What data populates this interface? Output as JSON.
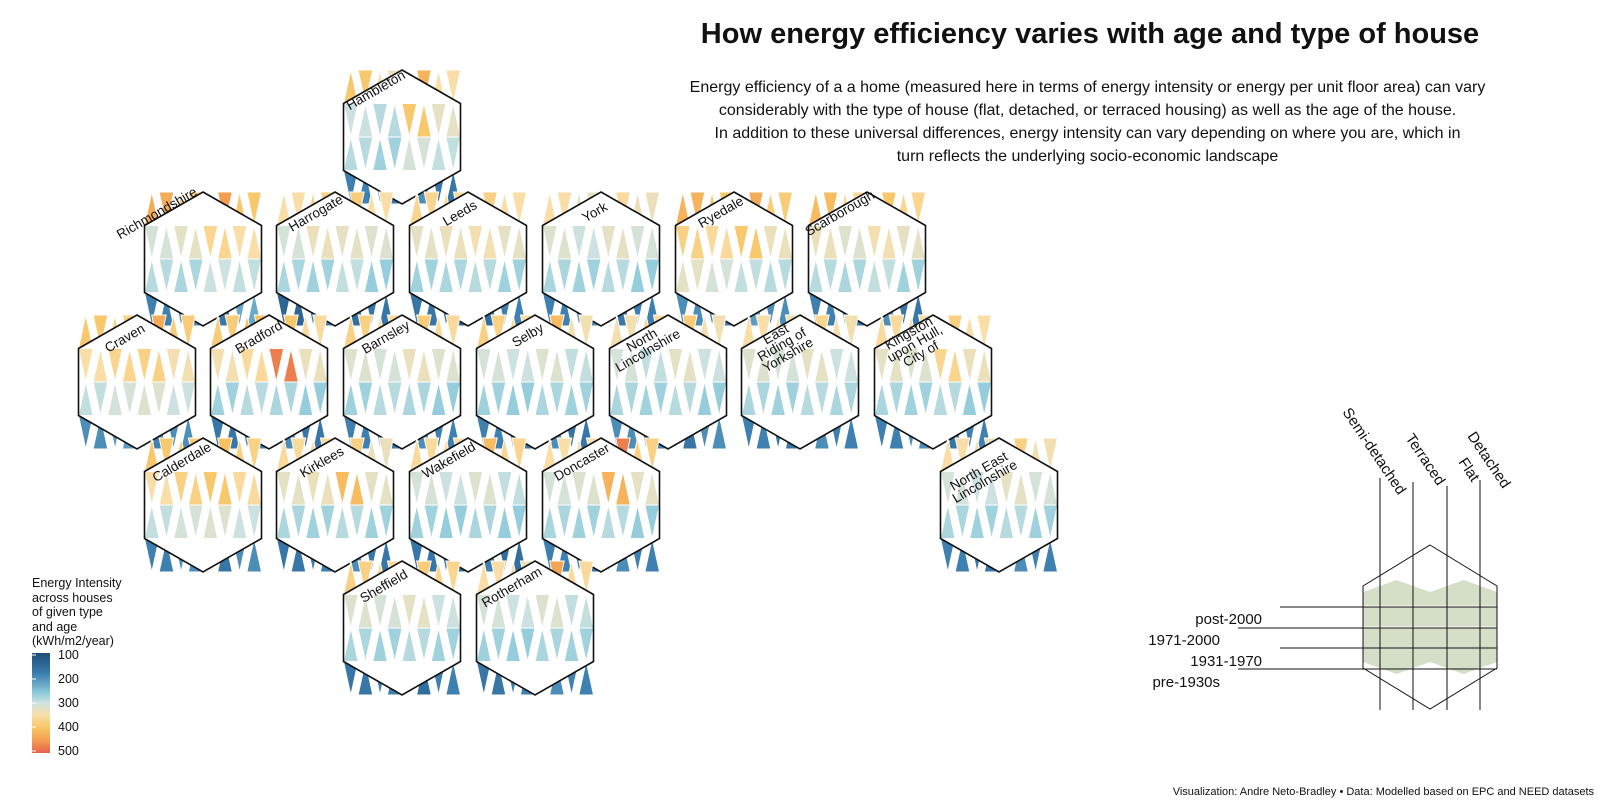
{
  "header": {
    "title": "How energy efficiency varies with age and type of house",
    "subtitle_lines": [
      "Energy efficiency of a a home (measured here in terms of energy intensity or energy per unit floor area) can vary",
      "considerably with the type of house (flat, detached, or terraced housing) as well as the age of the house.",
      "In addition to these universal differences, energy intensity can vary depending on where you are, which in",
      "turn reflects the underlying socio-economic landscape"
    ]
  },
  "caption": "Visualization: Andre Neto-Bradley  •  Data: Modelled based on EPC and NEED datasets",
  "legend": {
    "title_lines": [
      "Energy Intensity",
      "across houses",
      "of given type",
      "and age",
      "(kWh/m2/year)"
    ],
    "ticks": [
      "100",
      "200",
      "300",
      "400",
      "500"
    ]
  },
  "key": {
    "house_types": [
      "Semi-detached",
      "Terraced",
      "Flat",
      "Detached"
    ],
    "age_bands": [
      "post-2000",
      "1971-2000",
      "1931-1970",
      "pre-1930s"
    ]
  },
  "colors": {
    "scale": [
      "#1f4e79",
      "#3a7cad",
      "#8ecbdc",
      "#cfe3e0",
      "#f9dfaa",
      "#f8c565",
      "#f39b4f",
      "#e6614e"
    ],
    "key_fill": "#d5dfc8",
    "outline": "#111111"
  },
  "chart_data": {
    "type": "heatmap",
    "title": "How energy efficiency varies with age and type of house",
    "value_unit": "kWh/m2/year",
    "scale_range": [
      100,
      500
    ],
    "cells_per_hex": "4 house types x 4 age bands (rows: post-2000, 1971-2000, 1931-1970, pre-1930s)",
    "regions": [
      {
        "name": "Hambleton",
        "rows": [
          [
            380,
            310,
            410,
            330
          ],
          [
            270,
            250,
            380,
            300
          ],
          [
            250,
            230,
            280,
            260
          ],
          [
            160,
            150,
            170,
            150
          ]
        ]
      },
      {
        "name": "Richmondshire",
        "rows": [
          [
            420,
            360,
            440,
            380
          ],
          [
            280,
            300,
            350,
            330
          ],
          [
            250,
            240,
            270,
            260
          ],
          [
            160,
            170,
            150,
            190
          ]
        ]
      },
      {
        "name": "Harrogate",
        "rows": [
          [
            330,
            360,
            370,
            330
          ],
          [
            280,
            310,
            300,
            290
          ],
          [
            240,
            230,
            260,
            220
          ],
          [
            130,
            160,
            140,
            150
          ]
        ]
      },
      {
        "name": "Leeds",
        "rows": [
          [
            350,
            340,
            360,
            330
          ],
          [
            300,
            310,
            320,
            300
          ],
          [
            230,
            240,
            250,
            230
          ],
          [
            150,
            130,
            140,
            160
          ]
        ]
      },
      {
        "name": "York",
        "rows": [
          [
            330,
            300,
            340,
            310
          ],
          [
            290,
            270,
            300,
            280
          ],
          [
            240,
            230,
            250,
            220
          ],
          [
            160,
            170,
            150,
            160
          ]
        ]
      },
      {
        "name": "Ryedale",
        "rows": [
          [
            410,
            380,
            420,
            370
          ],
          [
            360,
            340,
            380,
            310
          ],
          [
            300,
            280,
            260,
            250
          ],
          [
            170,
            160,
            180,
            170
          ]
        ]
      },
      {
        "name": "Scarborough",
        "rows": [
          [
            400,
            340,
            380,
            350
          ],
          [
            310,
            290,
            320,
            300
          ],
          [
            250,
            240,
            260,
            230
          ],
          [
            160,
            150,
            170,
            150
          ]
        ]
      },
      {
        "name": "Craven",
        "rows": [
          [
            380,
            360,
            420,
            370
          ],
          [
            330,
            350,
            360,
            320
          ],
          [
            260,
            280,
            290,
            270
          ],
          [
            170,
            180,
            160,
            170
          ]
        ]
      },
      {
        "name": "Bradford",
        "rows": [
          [
            370,
            390,
            380,
            340
          ],
          [
            320,
            340,
            470,
            310
          ],
          [
            230,
            250,
            240,
            220
          ],
          [
            150,
            160,
            170,
            150
          ]
        ]
      },
      {
        "name": "Barnsley",
        "rows": [
          [
            360,
            330,
            370,
            340
          ],
          [
            290,
            280,
            310,
            290
          ],
          [
            230,
            250,
            240,
            220
          ],
          [
            160,
            150,
            170,
            160
          ]
        ]
      },
      {
        "name": "Selby",
        "rows": [
          [
            360,
            330,
            400,
            320
          ],
          [
            280,
            270,
            290,
            260
          ],
          [
            230,
            220,
            240,
            230
          ],
          [
            160,
            150,
            170,
            150
          ]
        ]
      },
      {
        "name": "North Lincolnshire",
        "rows": [
          [
            320,
            340,
            370,
            320
          ],
          [
            280,
            260,
            300,
            270
          ],
          [
            240,
            230,
            250,
            220
          ],
          [
            170,
            160,
            150,
            170
          ]
        ]
      },
      {
        "name": "East Riding of Yorkshire",
        "rows": [
          [
            330,
            320,
            350,
            320
          ],
          [
            290,
            280,
            300,
            270
          ],
          [
            240,
            230,
            250,
            240
          ],
          [
            160,
            150,
            170,
            160
          ]
        ]
      },
      {
        "name": "Kingston upon Hull, City of",
        "rows": [
          [
            340,
            320,
            360,
            330
          ],
          [
            300,
            290,
            350,
            310
          ],
          [
            240,
            230,
            250,
            220
          ],
          [
            160,
            170,
            150,
            160
          ]
        ]
      },
      {
        "name": "Calderdale",
        "rows": [
          [
            380,
            370,
            390,
            360
          ],
          [
            330,
            360,
            380,
            340
          ],
          [
            260,
            280,
            290,
            270
          ],
          [
            160,
            170,
            150,
            170
          ]
        ]
      },
      {
        "name": "Kirklees",
        "rows": [
          [
            340,
            330,
            360,
            310
          ],
          [
            300,
            310,
            400,
            300
          ],
          [
            240,
            230,
            250,
            230
          ],
          [
            150,
            160,
            170,
            150
          ]
        ]
      },
      {
        "name": "Wakefield",
        "rows": [
          [
            340,
            330,
            400,
            350
          ],
          [
            280,
            270,
            290,
            260
          ],
          [
            230,
            220,
            240,
            220
          ],
          [
            150,
            140,
            160,
            140
          ]
        ]
      },
      {
        "name": "Doncaster",
        "rows": [
          [
            330,
            320,
            470,
            360
          ],
          [
            280,
            290,
            410,
            300
          ],
          [
            240,
            230,
            250,
            220
          ],
          [
            160,
            150,
            170,
            160
          ]
        ]
      },
      {
        "name": "North East Lincolnshire",
        "rows": [
          [
            330,
            310,
            360,
            320
          ],
          [
            280,
            270,
            300,
            280
          ],
          [
            240,
            230,
            250,
            230
          ],
          [
            160,
            150,
            170,
            160
          ]
        ]
      },
      {
        "name": "Sheffield",
        "rows": [
          [
            360,
            340,
            370,
            350
          ],
          [
            290,
            280,
            300,
            270
          ],
          [
            240,
            230,
            250,
            230
          ],
          [
            150,
            160,
            140,
            160
          ]
        ]
      },
      {
        "name": "Rotherham",
        "rows": [
          [
            330,
            310,
            430,
            340
          ],
          [
            280,
            270,
            290,
            260
          ],
          [
            230,
            220,
            240,
            230
          ],
          [
            150,
            160,
            170,
            160
          ]
        ]
      }
    ]
  }
}
